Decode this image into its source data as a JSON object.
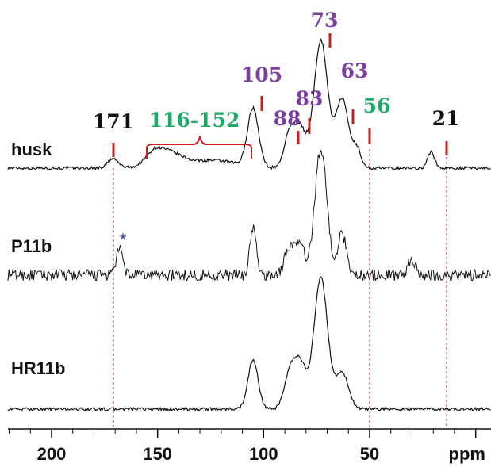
{
  "chart_data": {
    "type": "line",
    "xlabel": "ppm",
    "xlim": [
      220,
      0
    ],
    "x_reversed": true,
    "x_ticks": [
      200,
      150,
      100,
      50
    ],
    "x_tick_labels": [
      "200",
      "150",
      "100",
      "50"
    ],
    "grid": false,
    "series": [
      {
        "name": "husk",
        "noise": 0.8,
        "peaks": [
          [
            171,
            5,
            2.5
          ],
          [
            152,
            6,
            4
          ],
          [
            145,
            7,
            6
          ],
          [
            130,
            2.5,
            15
          ],
          [
            122,
            2,
            10
          ],
          [
            105,
            32,
            2.6
          ],
          [
            88,
            16,
            2.5
          ],
          [
            83,
            22,
            3
          ],
          [
            73,
            70,
            3.2
          ],
          [
            63,
            38,
            3
          ],
          [
            56,
            10,
            2
          ],
          [
            21,
            9,
            1.6
          ]
        ]
      },
      {
        "name": "P11b",
        "noise": 3.2,
        "peaks": [
          [
            168,
            14,
            1.6
          ],
          [
            105,
            26,
            1.5
          ],
          [
            88,
            14,
            2.2
          ],
          [
            83,
            16,
            2.4
          ],
          [
            73,
            70,
            2.8
          ],
          [
            63,
            22,
            2.2
          ],
          [
            30,
            8,
            2
          ]
        ]
      },
      {
        "name": "HR11b",
        "noise": 0.8,
        "peaks": [
          [
            105,
            27,
            2.4
          ],
          [
            88,
            16,
            2.5
          ],
          [
            83,
            26,
            3
          ],
          [
            73,
            72,
            3.2
          ],
          [
            63,
            20,
            3
          ]
        ]
      }
    ],
    "annotations": {
      "black": [
        "171",
        "21"
      ],
      "green": [
        "116-152",
        "56"
      ],
      "purple": [
        "105",
        "88",
        "83",
        "73",
        "63"
      ],
      "asterisk": "*"
    },
    "colors": {
      "black": "#111111",
      "green": "#1faa6a",
      "purple": "#7a3fa0",
      "red": "#cc1f1f",
      "blue": "#2a3b9e"
    }
  }
}
